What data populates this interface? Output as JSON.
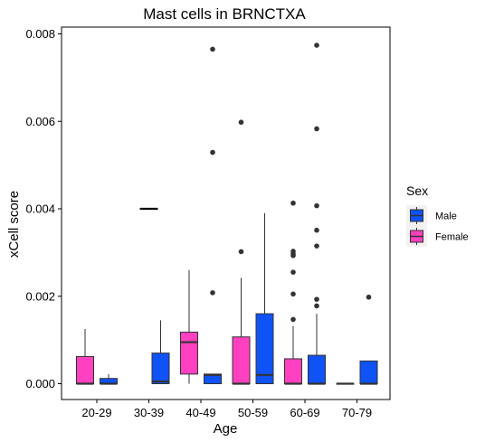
{
  "chart_data": {
    "type": "boxplot",
    "title": "Mast cells in BRNCTXA",
    "xlabel": "Age",
    "ylabel": "xCell score",
    "ylim": [
      -0.0004,
      0.0082
    ],
    "yticks": [
      "0.000",
      "0.002",
      "0.004",
      "0.006",
      "0.008"
    ],
    "ytick_values": [
      0,
      0.002,
      0.004,
      0.006,
      0.008
    ],
    "categories": [
      "20-29",
      "30-39",
      "40-49",
      "50-59",
      "60-69",
      "70-79"
    ],
    "legend": {
      "title": "Sex",
      "position": "right",
      "entries": [
        {
          "name": "Male",
          "color": "#0F52F5"
        },
        {
          "name": "Female",
          "color": "#FF40C0"
        }
      ]
    },
    "grid": false,
    "series": [
      {
        "name": "Female",
        "color": "#FF40C0",
        "boxes": [
          {
            "category": "20-29",
            "min": 0,
            "q1": 0,
            "median": 0,
            "q3": 0.00062,
            "max": 0.00125,
            "outliers": []
          },
          null,
          {
            "category": "40-49",
            "min": 0,
            "q1": 0.00022,
            "median": 0.00095,
            "q3": 0.00118,
            "max": 0.0026,
            "outliers": []
          },
          {
            "category": "50-59",
            "min": 0,
            "q1": 0,
            "median": 0,
            "q3": 0.00107,
            "max": 0.00242,
            "outliers": [
              0.00302,
              0.00598
            ]
          },
          {
            "category": "60-69",
            "min": 0,
            "q1": 0,
            "median": 0,
            "q3": 0.00057,
            "max": 0.00132,
            "outliers": [
              0.00147,
              0.00205,
              0.00255,
              0.00293,
              0.00297,
              0.00303,
              0.00413
            ]
          },
          {
            "category": "70-79",
            "min": 0,
            "q1": 0,
            "median": 0,
            "q3": 0,
            "max": 0,
            "outliers": []
          }
        ]
      },
      {
        "name": "Male",
        "color": "#0F52F5",
        "boxes": [
          {
            "category": "20-29",
            "min": 0,
            "q1": 0,
            "median": 0,
            "q3": 0.00012,
            "max": 0.00022,
            "outliers": []
          },
          {
            "category": "30-39",
            "min": 0,
            "q1": 0,
            "median": 5e-05,
            "q3": 0.0007,
            "max": 0.00145,
            "outliers": []
          },
          {
            "category": "40-49",
            "min": 0,
            "q1": 0,
            "median": 0.0002,
            "q3": 0.00022,
            "max": 0.00022,
            "outliers": [
              0.00208,
              0.00529,
              0.00765
            ]
          },
          {
            "category": "50-59",
            "min": 0,
            "q1": 0,
            "median": 0.0002,
            "q3": 0.0016,
            "max": 0.0039,
            "outliers": []
          },
          {
            "category": "60-69",
            "min": 0,
            "q1": 0,
            "median": 0,
            "q3": 0.00065,
            "max": 0.0016,
            "outliers": [
              0.00178,
              0.00193,
              0.00315,
              0.00351,
              0.00407,
              0.00583,
              0.00774
            ]
          },
          {
            "category": "70-79",
            "min": 0,
            "q1": 0,
            "median": 0,
            "q3": 0.00052,
            "max": 0.00052,
            "outliers": [
              0.00198
            ]
          }
        ]
      }
    ],
    "collapsed": [
      {
        "category": "30-39",
        "value": 0.004,
        "color": "#000000"
      }
    ]
  }
}
